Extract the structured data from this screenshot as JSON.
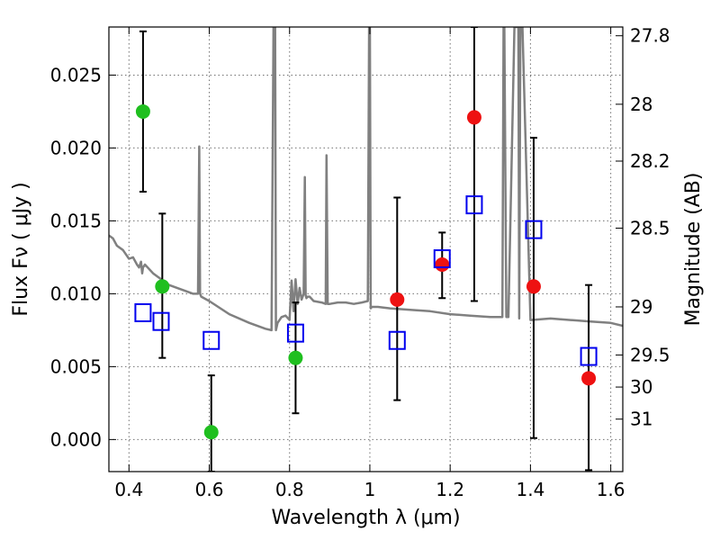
{
  "chart_data": {
    "type": "scatter",
    "title": "",
    "xlabel": "Wavelength  λ (μm)",
    "ylabel": "Flux  Fν  ( μJy )",
    "y2label": "Magnitude (AB)",
    "xlim": [
      0.35,
      1.63
    ],
    "ylim": [
      -0.0022,
      0.0283
    ],
    "grid": true,
    "x_ticks": [
      0.4,
      0.6,
      0.8,
      1.0,
      1.2,
      1.4,
      1.6
    ],
    "x_tick_labels": [
      "0.4",
      "0.6",
      "0.8",
      "1",
      "1.2",
      "1.4",
      "1.6"
    ],
    "y_ticks": [
      0.0,
      0.005,
      0.01,
      0.015,
      0.02,
      0.025
    ],
    "y_tick_labels": [
      "0.000",
      "0.005",
      "0.010",
      "0.015",
      "0.020",
      "0.025"
    ],
    "y2_ticks": [
      {
        "label": "27.8",
        "flux": 0.0277
      },
      {
        "label": "28",
        "flux": 0.023
      },
      {
        "label": "28.2",
        "flux": 0.0191
      },
      {
        "label": "28.5",
        "flux": 0.0145
      },
      {
        "label": "29",
        "flux": 0.0091
      },
      {
        "label": "29.5",
        "flux": 0.0058
      },
      {
        "label": "30",
        "flux": 0.0036
      },
      {
        "label": "31",
        "flux": 0.0014
      }
    ],
    "series": [
      {
        "name": "Green observations",
        "marker": "circle",
        "color": "#1fbf1f",
        "points": [
          {
            "x": 0.435,
            "y": 0.0225,
            "err_low": 0.017,
            "err_high": 0.028
          },
          {
            "x": 0.483,
            "y": 0.0105,
            "err_low": 0.0056,
            "err_high": 0.0155
          },
          {
            "x": 0.605,
            "y": 0.0005,
            "err_low": -0.0022,
            "err_high": 0.0044
          },
          {
            "x": 0.815,
            "y": 0.0056,
            "err_low": 0.0018,
            "err_high": 0.0094
          }
        ]
      },
      {
        "name": "Red observations",
        "marker": "circle",
        "color": "#ee1111",
        "points": [
          {
            "x": 1.068,
            "y": 0.0096,
            "err_low": 0.0027,
            "err_high": 0.0166
          },
          {
            "x": 1.18,
            "y": 0.012,
            "err_low": 0.0097,
            "err_high": 0.0142
          },
          {
            "x": 1.26,
            "y": 0.0221,
            "err_low": 0.0095,
            "err_high": 0.0283
          },
          {
            "x": 1.408,
            "y": 0.0105,
            "err_low": 0.0001,
            "err_high": 0.0207
          },
          {
            "x": 1.545,
            "y": 0.0042,
            "err_low": -0.0021,
            "err_high": 0.0106
          }
        ]
      },
      {
        "name": "Model photometry",
        "marker": "open-square",
        "color": "#0000ee",
        "points": [
          {
            "x": 0.435,
            "y": 0.0087
          },
          {
            "x": 0.48,
            "y": 0.0081
          },
          {
            "x": 0.605,
            "y": 0.0068
          },
          {
            "x": 0.815,
            "y": 0.0073
          },
          {
            "x": 1.068,
            "y": 0.0068
          },
          {
            "x": 1.18,
            "y": 0.0124
          },
          {
            "x": 1.26,
            "y": 0.0161
          },
          {
            "x": 1.408,
            "y": 0.0144
          },
          {
            "x": 1.545,
            "y": 0.0057
          }
        ]
      },
      {
        "name": "Model spectrum",
        "type": "line",
        "color": "#808080",
        "x": [
          0.35,
          0.36,
          0.37,
          0.385,
          0.4,
          0.41,
          0.42,
          0.425,
          0.43,
          0.433,
          0.435,
          0.44,
          0.46,
          0.48,
          0.5,
          0.52,
          0.54,
          0.56,
          0.572,
          0.575,
          0.577,
          0.58,
          0.6,
          0.65,
          0.7,
          0.74,
          0.755,
          0.76,
          0.762,
          0.764,
          0.766,
          0.77,
          0.78,
          0.79,
          0.8,
          0.805,
          0.81,
          0.815,
          0.82,
          0.825,
          0.83,
          0.835,
          0.838,
          0.84,
          0.842,
          0.845,
          0.85,
          0.86,
          0.88,
          0.89,
          0.892,
          0.895,
          0.9,
          0.92,
          0.94,
          0.96,
          0.98,
          0.995,
          0.998,
          1.0,
          1.002,
          1.005,
          1.02,
          1.05,
          1.1,
          1.15,
          1.2,
          1.25,
          1.3,
          1.33,
          1.333,
          1.335,
          1.34,
          1.345,
          1.36,
          1.37,
          1.372,
          1.375,
          1.378,
          1.38,
          1.4,
          1.45,
          1.5,
          1.55,
          1.6,
          1.63
        ],
        "y": [
          0.014,
          0.0138,
          0.0133,
          0.013,
          0.0124,
          0.0125,
          0.012,
          0.0118,
          0.0122,
          0.0114,
          0.0118,
          0.012,
          0.0114,
          0.011,
          0.0106,
          0.0104,
          0.0102,
          0.01,
          0.01,
          0.0201,
          0.01,
          0.0098,
          0.0095,
          0.0086,
          0.008,
          0.0076,
          0.0075,
          0.0283,
          0.0283,
          0.0283,
          0.0075,
          0.008,
          0.0084,
          0.0085,
          0.0082,
          0.0109,
          0.0088,
          0.011,
          0.0093,
          0.0104,
          0.0096,
          0.01,
          0.018,
          0.0099,
          0.0097,
          0.0098,
          0.0098,
          0.0095,
          0.0094,
          0.0093,
          0.0195,
          0.0093,
          0.0093,
          0.0094,
          0.0094,
          0.0093,
          0.0094,
          0.0095,
          0.0283,
          0.0283,
          0.009,
          0.0091,
          0.0091,
          0.009,
          0.0089,
          0.0088,
          0.0086,
          0.0085,
          0.0084,
          0.0084,
          0.0283,
          0.0283,
          0.0084,
          0.0084,
          0.0283,
          0.0283,
          0.0083,
          0.0283,
          0.0283,
          0.0283,
          0.0082,
          0.0083,
          0.0082,
          0.0081,
          0.008,
          0.0078
        ]
      }
    ]
  }
}
